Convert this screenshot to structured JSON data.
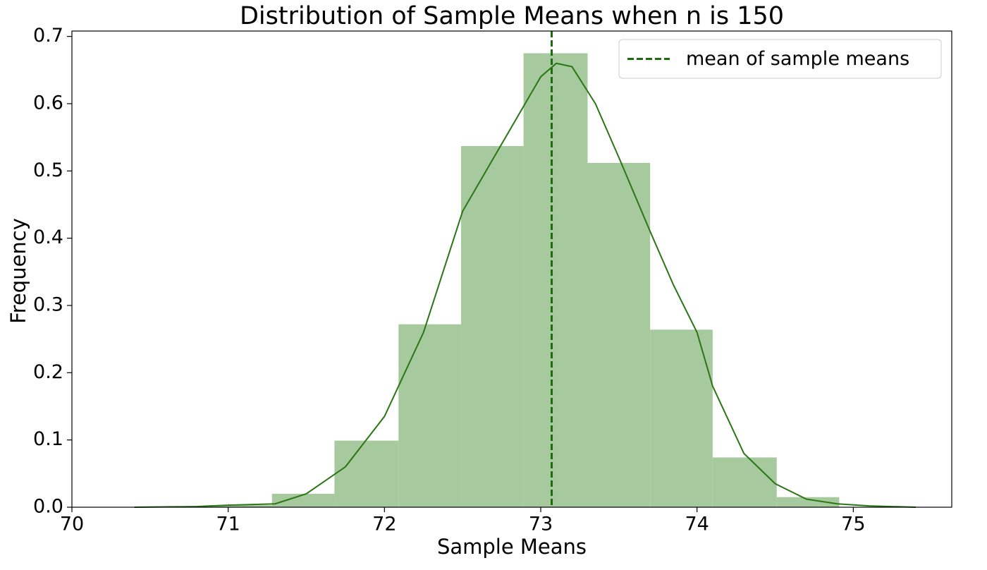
{
  "chart_data": {
    "type": "histogram",
    "title": "Distribution of Sample Means when n is 150",
    "xlabel": "Sample Means",
    "ylabel": "Frequency",
    "bins": [
      70.88,
      71.28,
      71.68,
      72.09,
      72.49,
      72.89,
      73.3,
      73.7,
      74.1,
      74.51,
      74.91
    ],
    "counts": [
      0.003,
      0.02,
      0.099,
      0.272,
      0.537,
      0.675,
      0.512,
      0.264,
      0.074,
      0.015
    ],
    "color": "#a6ca9e",
    "kde": {
      "color": "#2a7614",
      "x": [
        70.4,
        70.8,
        71.0,
        71.3,
        71.5,
        71.75,
        72.0,
        72.25,
        72.5,
        72.75,
        73.0,
        73.1,
        73.2,
        73.35,
        73.5,
        73.7,
        73.85,
        74.0,
        74.1,
        74.3,
        74.5,
        74.7,
        74.9,
        75.1,
        75.4
      ],
      "y": [
        0,
        0.001,
        0.003,
        0.005,
        0.02,
        0.06,
        0.135,
        0.26,
        0.44,
        0.54,
        0.64,
        0.66,
        0.655,
        0.6,
        0.52,
        0.41,
        0.33,
        0.26,
        0.18,
        0.08,
        0.035,
        0.012,
        0.005,
        0.002,
        0
      ]
    },
    "mean_line": {
      "x": 73.07,
      "label": "mean of sample means",
      "color": "#1f6a0f"
    },
    "legend": "upper right",
    "xlim": [
      70,
      75.63
    ],
    "ylim": [
      0,
      0.708
    ],
    "xticks": [
      70,
      71,
      72,
      73,
      74,
      75
    ],
    "yticks": [
      {
        "value": 0,
        "label": "0.0"
      },
      0.1,
      0.2,
      0.3,
      0.4,
      0.5,
      0.6,
      0.7
    ]
  }
}
